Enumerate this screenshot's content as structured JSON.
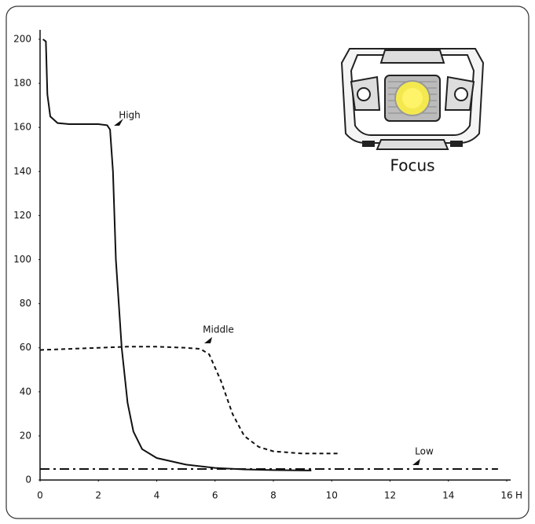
{
  "chart_data": {
    "type": "line",
    "x_label": "H",
    "image_caption": "Focus",
    "xlim": [
      0,
      16
    ],
    "xticks": [
      0,
      2,
      4,
      6,
      8,
      10,
      12,
      14,
      16
    ],
    "ylim": [
      0,
      200
    ],
    "yticks": [
      0,
      20,
      40,
      60,
      80,
      100,
      120,
      140,
      160,
      180,
      200
    ],
    "grid": false,
    "series": [
      {
        "name": "High",
        "color": "#111111",
        "dash": "solid",
        "x": [
          0.1,
          0.2,
          0.25,
          0.35,
          0.6,
          1,
          2,
          2.3,
          2.4,
          2.5,
          2.6,
          2.8,
          3,
          3.2,
          3.5,
          4,
          5,
          6,
          7,
          8,
          9.3
        ],
        "values": [
          200,
          199,
          175,
          165,
          162,
          161.5,
          161.5,
          161,
          159,
          140,
          100,
          60,
          35,
          22,
          14,
          10,
          7,
          5.5,
          4.8,
          4.5,
          4.3
        ]
      },
      {
        "name": "Middle",
        "color": "#111111",
        "dash": "dashed",
        "x": [
          0,
          1,
          2,
          3,
          4,
          5,
          5.5,
          5.8,
          6.2,
          6.6,
          7,
          7.5,
          8,
          9,
          10.2
        ],
        "values": [
          59,
          59.5,
          60,
          60.5,
          60.5,
          60,
          59.5,
          57,
          45,
          30,
          20,
          15,
          13,
          12,
          12
        ]
      },
      {
        "name": "Low",
        "color": "#111111",
        "dash": "dashdot",
        "x": [
          0,
          15.7
        ],
        "values": [
          5,
          5
        ]
      }
    ]
  }
}
